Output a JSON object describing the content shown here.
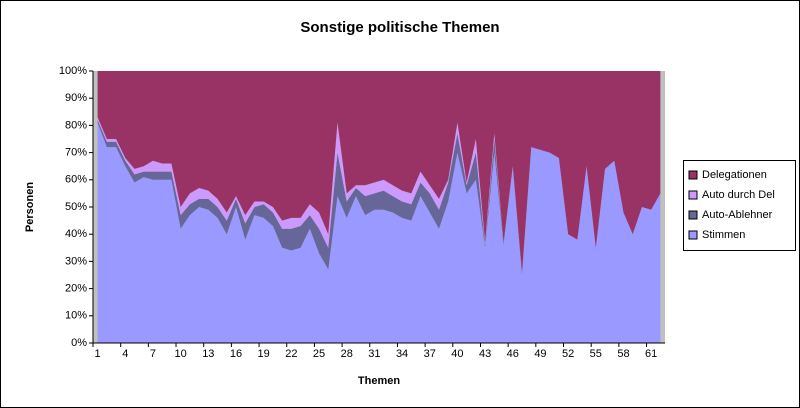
{
  "chart_data": {
    "type": "stacked_area_percent",
    "title": "Sonstige politische Themen",
    "x_label": "Themen",
    "y_label": "Personen",
    "categories": [
      1,
      null,
      null,
      4,
      null,
      null,
      7,
      null,
      null,
      10,
      null,
      null,
      13,
      null,
      null,
      16,
      null,
      null,
      19,
      null,
      null,
      22,
      null,
      null,
      25,
      null,
      null,
      28,
      null,
      null,
      31,
      null,
      null,
      34,
      null,
      null,
      37,
      null,
      null,
      40,
      null,
      null,
      43,
      null,
      null,
      46,
      null,
      null,
      49,
      null,
      null,
      52,
      null,
      null,
      55,
      null,
      null,
      58,
      null,
      null,
      61,
      null
    ],
    "series": [
      {
        "name": "Stimmen",
        "color": "#9999ff",
        "values": [
          81,
          72,
          72,
          65,
          59,
          61,
          60,
          60,
          60,
          42,
          47,
          50,
          49,
          46,
          40,
          50,
          38,
          47,
          46,
          43,
          35,
          34,
          35,
          42,
          33,
          27,
          54,
          46,
          54,
          47,
          49,
          49,
          48,
          46,
          45,
          54,
          48,
          42,
          52,
          70,
          55,
          60,
          35,
          70,
          36,
          65,
          25,
          72,
          71,
          70,
          68,
          40,
          38,
          65,
          35,
          64,
          67,
          48,
          40,
          50,
          49,
          55
        ]
      },
      {
        "name": "Auto-Ablehner",
        "color": "#666699",
        "values": [
          1,
          2,
          2,
          2,
          3,
          2,
          3,
          3,
          3,
          5,
          4,
          3,
          4,
          4,
          5,
          3,
          6,
          3,
          5,
          5,
          7,
          8,
          8,
          5,
          9,
          8,
          16,
          6,
          3,
          7,
          6,
          7,
          6,
          6,
          6,
          5,
          7,
          7,
          7,
          7,
          3,
          10,
          1,
          5,
          1,
          0,
          1,
          0,
          0,
          0,
          0,
          0,
          0,
          0,
          0,
          0,
          0,
          0,
          0,
          0,
          0,
          0
        ]
      },
      {
        "name": "Auto durch Del",
        "color": "#cc99ff",
        "values": [
          1,
          1,
          1,
          1,
          2,
          2,
          4,
          3,
          3,
          3,
          4,
          4,
          3,
          3,
          3,
          1,
          3,
          2,
          1,
          2,
          3,
          4,
          3,
          4,
          6,
          5,
          11,
          3,
          1,
          4,
          4,
          4,
          4,
          4,
          4,
          4,
          3,
          4,
          1,
          4,
          1,
          5,
          1,
          2,
          0,
          0,
          0,
          0,
          0,
          0,
          0,
          0,
          0,
          0,
          0,
          0,
          0,
          0,
          0,
          0,
          0,
          0
        ]
      },
      {
        "name": "Delegationen",
        "color": "#993366",
        "values": [
          17,
          25,
          25,
          32,
          36,
          35,
          33,
          34,
          34,
          50,
          45,
          43,
          44,
          47,
          52,
          46,
          53,
          48,
          48,
          50,
          55,
          54,
          54,
          49,
          52,
          60,
          19,
          45,
          42,
          42,
          41,
          40,
          42,
          44,
          45,
          37,
          42,
          47,
          40,
          19,
          41,
          25,
          63,
          23,
          63,
          35,
          74,
          28,
          29,
          30,
          32,
          60,
          62,
          35,
          65,
          36,
          33,
          52,
          60,
          50,
          51,
          45
        ]
      }
    ],
    "ylim": [
      0,
      100
    ],
    "yticks": [
      {
        "value": 0,
        "label": "0%"
      },
      {
        "value": 10,
        "label": "10%"
      },
      {
        "value": 20,
        "label": "20%"
      },
      {
        "value": 30,
        "label": "30%"
      },
      {
        "value": 40,
        "label": "40%"
      },
      {
        "value": 50,
        "label": "50%"
      },
      {
        "value": 60,
        "label": "60%"
      },
      {
        "value": 70,
        "label": "70%"
      },
      {
        "value": 80,
        "label": "80%"
      },
      {
        "value": 90,
        "label": "90%"
      },
      {
        "value": 100,
        "label": "100%"
      }
    ],
    "legend": "right"
  }
}
